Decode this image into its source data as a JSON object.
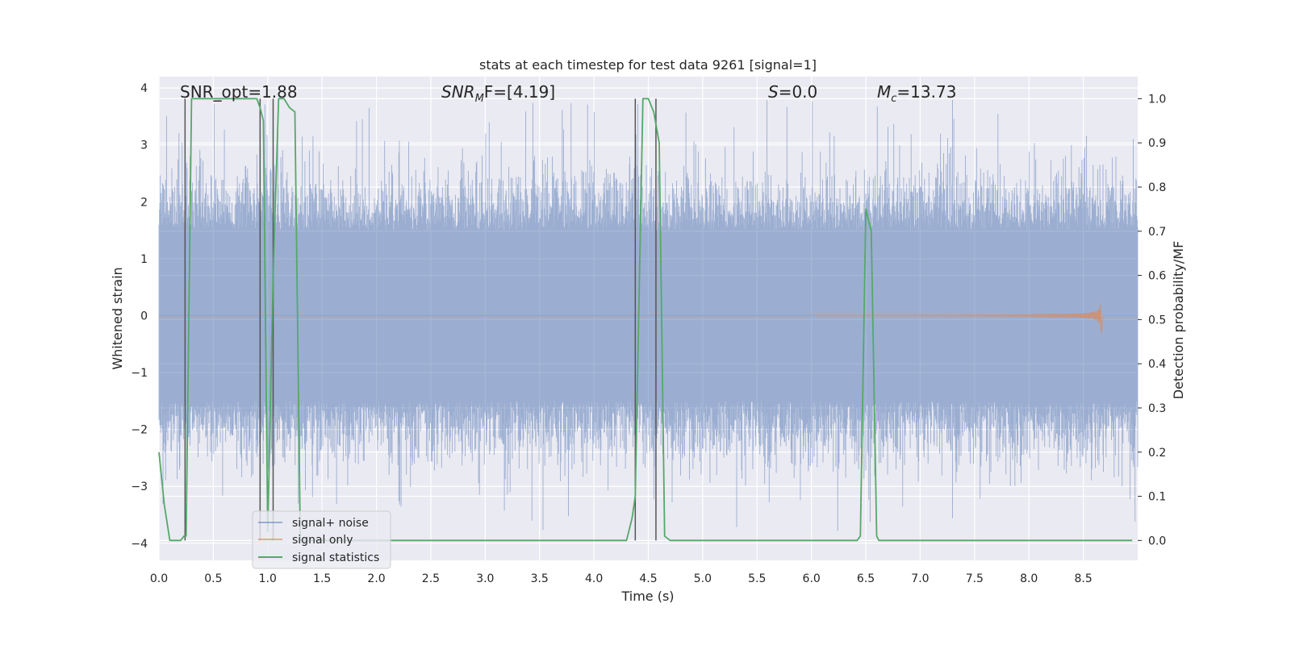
{
  "chart_data": {
    "type": "line",
    "title": "stats at each timestep for test data 9261 [signal=1]",
    "xlabel": "Time (s)",
    "ylabel_left": "Whitened strain",
    "ylabel_right": "Detection probability/MF",
    "xlim": [
      0.0,
      9.0
    ],
    "ylim_left": [
      -4.3,
      4.2
    ],
    "ylim_right": [
      -0.045,
      1.05
    ],
    "x_ticks": [
      0.0,
      0.5,
      1.0,
      1.5,
      2.0,
      2.5,
      3.0,
      3.5,
      4.0,
      4.5,
      5.0,
      5.5,
      6.0,
      6.5,
      7.0,
      7.5,
      8.0,
      8.5
    ],
    "x_tick_labels": [
      "0.0",
      "0.5",
      "1.0",
      "1.5",
      "2.0",
      "2.5",
      "3.0",
      "3.5",
      "4.0",
      "4.5",
      "5.0",
      "5.5",
      "6.0",
      "6.5",
      "7.0",
      "7.5",
      "8.0",
      "8.5"
    ],
    "y_left_ticks": [
      4,
      3,
      2,
      1,
      0,
      -1,
      -2,
      -3,
      -4
    ],
    "y_left_tick_labels": [
      "4",
      "3",
      "2",
      "1",
      "0",
      "−1",
      "−2",
      "−3",
      "−4"
    ],
    "y_right_ticks": [
      1.0,
      0.9,
      0.8,
      0.7,
      0.6,
      0.5,
      0.4,
      0.3,
      0.2,
      0.1,
      0.0
    ],
    "y_right_tick_labels": [
      "1.0",
      "0.9",
      "0.8",
      "0.7",
      "0.6",
      "0.5",
      "0.4",
      "0.3",
      "0.2",
      "0.1",
      "0.0"
    ],
    "grid": true,
    "annotations": {
      "snr_opt": "SNR_opt=1.88",
      "snr_mf_name": "SNR",
      "snr_mf_sub": "M",
      "snr_mf_rest": "F=[4.19]",
      "s_name": "S",
      "s_rest": "=0.0",
      "mc_name": "M",
      "mc_sub": "c",
      "mc_rest": "=13.73"
    },
    "legend": {
      "location": "lower-left",
      "entries": [
        "signal+ noise",
        "signal only",
        "signal statistics"
      ]
    },
    "series": [
      {
        "name": "signal+ noise",
        "axis": "left",
        "color": "#4c72b0",
        "noise_band": {
          "t_start": 0.0,
          "t_end": 9.0,
          "typical_amplitude": 1.5,
          "peak_amplitude": 4.0
        }
      },
      {
        "name": "signal only",
        "axis": "left",
        "color": "#dd8452",
        "chirp": {
          "t_start": 6.0,
          "t_merger": 8.67,
          "peak_amplitude": 0.4
        }
      },
      {
        "name": "signal statistics",
        "axis": "right",
        "color": "#55a868",
        "t": [
          0.0,
          0.05,
          0.1,
          0.15,
          0.2,
          0.23,
          0.25,
          0.3,
          0.35,
          0.9,
          0.93,
          0.96,
          1.0,
          1.05,
          1.1,
          1.15,
          1.2,
          1.25,
          1.3,
          1.35,
          4.3,
          4.35,
          4.38,
          4.45,
          4.5,
          4.55,
          4.6,
          4.65,
          4.7,
          4.75,
          6.42,
          6.45,
          6.5,
          6.55,
          6.6,
          6.62,
          8.95
        ],
        "values": [
          0.2,
          0.08,
          0.0,
          0.0,
          0.0,
          0.01,
          0.01,
          1.0,
          1.0,
          1.0,
          0.98,
          0.95,
          0.02,
          0.6,
          1.0,
          1.0,
          0.98,
          0.97,
          0.0,
          0.0,
          0.0,
          0.05,
          0.1,
          1.0,
          1.0,
          0.97,
          0.9,
          0.01,
          0.0,
          0.0,
          0.0,
          0.01,
          0.75,
          0.7,
          0.01,
          0.0,
          0.0
        ]
      }
    ],
    "vlines": [
      0.24,
      0.93,
      1.05,
      4.38,
      4.57
    ]
  }
}
